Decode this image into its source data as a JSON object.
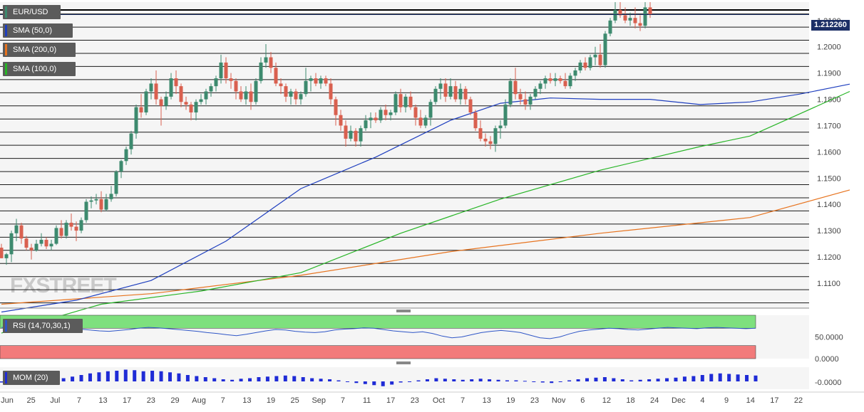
{
  "symbol": "EUR/USD",
  "last_price": "1.212260",
  "watermark": "FXSTREET",
  "colors": {
    "up": "#3d8a6e",
    "down": "#d9604f",
    "sma50": "#1f3fbf",
    "sma200": "#e7731e",
    "sma100": "#27b526",
    "rsi_line": "#2f56c7",
    "rsi_upper_zone": "#7ee07e",
    "rsi_lower_zone": "#f27b7b",
    "mom_bar": "#1f2bd6"
  },
  "indicators": [
    {
      "label": "SMA (50,0)",
      "color": "#1f3fbf"
    },
    {
      "label": "SMA (200,0)",
      "color": "#e7731e"
    },
    {
      "label": "SMA (100,0)",
      "color": "#27b526"
    }
  ],
  "rsi_label": "RSI (14,70,30,1)",
  "mom_label": "MOM (20)",
  "chart_data": {
    "type": "candlestick",
    "price_axis": {
      "ticks": [
        "1.2100",
        "1.2000",
        "1.1900",
        "1.1800",
        "1.1700",
        "1.1600",
        "1.1500",
        "1.1400",
        "1.1300",
        "1.1200",
        "1.1100"
      ],
      "ylim": [
        1.1005,
        1.217
      ]
    },
    "rsi_axis": {
      "ticks": [
        "50.0000",
        "0.0000"
      ],
      "ylim": [
        0,
        100
      ],
      "upper": 70,
      "lower": 30
    },
    "mom_axis": {
      "ticks": [
        "-0.0000"
      ]
    },
    "x_tick_labels": [
      "Jun",
      "25",
      "Jul",
      "7",
      "13",
      "17",
      "23",
      "29",
      "Aug",
      "7",
      "13",
      "19",
      "25",
      "Sep",
      "7",
      "11",
      "17",
      "23",
      "Oct",
      "7",
      "13",
      "19",
      "23",
      "Nov",
      "6",
      "12",
      "18",
      "24",
      "Dec",
      "4",
      "9",
      "14",
      "17",
      "22"
    ],
    "candles": [
      [
        1.1235,
        1.125,
        1.1195,
        1.1195
      ],
      [
        1.1195,
        1.1215,
        1.117,
        1.121
      ],
      [
        1.121,
        1.13,
        1.118,
        1.129
      ],
      [
        1.129,
        1.1345,
        1.126,
        1.132
      ],
      [
        1.132,
        1.133,
        1.125,
        1.127
      ],
      [
        1.127,
        1.128,
        1.1225,
        1.1235
      ],
      [
        1.1235,
        1.125,
        1.119,
        1.1225
      ],
      [
        1.1225,
        1.1265,
        1.122,
        1.125
      ],
      [
        1.125,
        1.129,
        1.124,
        1.1265
      ],
      [
        1.1265,
        1.1275,
        1.123,
        1.124
      ],
      [
        1.124,
        1.1265,
        1.1225,
        1.125
      ],
      [
        1.125,
        1.132,
        1.1245,
        1.131
      ],
      [
        1.131,
        1.134,
        1.127,
        1.128
      ],
      [
        1.128,
        1.134,
        1.127,
        1.133
      ],
      [
        1.133,
        1.1365,
        1.13,
        1.1315
      ],
      [
        1.1315,
        1.1335,
        1.126,
        1.13
      ],
      [
        1.13,
        1.135,
        1.129,
        1.134
      ],
      [
        1.134,
        1.142,
        1.133,
        1.141
      ],
      [
        1.141,
        1.143,
        1.1385,
        1.1415
      ],
      [
        1.1415,
        1.144,
        1.14,
        1.142
      ],
      [
        1.142,
        1.145,
        1.137,
        1.138
      ],
      [
        1.138,
        1.144,
        1.1375,
        1.142
      ],
      [
        1.142,
        1.147,
        1.141,
        1.144
      ],
      [
        1.144,
        1.153,
        1.143,
        1.1525
      ],
      [
        1.1525,
        1.157,
        1.15,
        1.1565
      ],
      [
        1.1565,
        1.162,
        1.155,
        1.161
      ],
      [
        1.161,
        1.168,
        1.159,
        1.167
      ],
      [
        1.167,
        1.178,
        1.165,
        1.177
      ],
      [
        1.177,
        1.182,
        1.173,
        1.175
      ],
      [
        1.175,
        1.184,
        1.174,
        1.183
      ],
      [
        1.183,
        1.188,
        1.18,
        1.186
      ],
      [
        1.186,
        1.191,
        1.178,
        1.18
      ],
      [
        1.18,
        1.181,
        1.17,
        1.1775
      ],
      [
        1.1775,
        1.183,
        1.176,
        1.181
      ],
      [
        1.181,
        1.19,
        1.18,
        1.188
      ],
      [
        1.188,
        1.191,
        1.182,
        1.185
      ],
      [
        1.185,
        1.186,
        1.177,
        1.179
      ],
      [
        1.179,
        1.181,
        1.176,
        1.178
      ],
      [
        1.178,
        1.179,
        1.172,
        1.175
      ],
      [
        1.175,
        1.18,
        1.172,
        1.179
      ],
      [
        1.179,
        1.182,
        1.178,
        1.18
      ],
      [
        1.18,
        1.184,
        1.178,
        1.183
      ],
      [
        1.183,
        1.186,
        1.181,
        1.185
      ],
      [
        1.185,
        1.189,
        1.183,
        1.188
      ],
      [
        1.188,
        1.197,
        1.186,
        1.194
      ],
      [
        1.194,
        1.196,
        1.186,
        1.188
      ],
      [
        1.188,
        1.19,
        1.184,
        1.187
      ],
      [
        1.187,
        1.188,
        1.18,
        1.183
      ],
      [
        1.183,
        1.185,
        1.179,
        1.18
      ],
      [
        1.18,
        1.185,
        1.178,
        1.183
      ],
      [
        1.183,
        1.186,
        1.176,
        1.179
      ],
      [
        1.179,
        1.188,
        1.178,
        1.187
      ],
      [
        1.187,
        1.196,
        1.186,
        1.194
      ],
      [
        1.194,
        1.201,
        1.192,
        1.196
      ],
      [
        1.196,
        1.198,
        1.19,
        1.192
      ],
      [
        1.192,
        1.194,
        1.185,
        1.186
      ],
      [
        1.186,
        1.188,
        1.182,
        1.185
      ],
      [
        1.185,
        1.186,
        1.179,
        1.181
      ],
      [
        1.181,
        1.184,
        1.178,
        1.183
      ],
      [
        1.183,
        1.184,
        1.178,
        1.18
      ],
      [
        1.18,
        1.183,
        1.178,
        1.182
      ],
      [
        1.182,
        1.192,
        1.181,
        1.187
      ],
      [
        1.187,
        1.189,
        1.183,
        1.188
      ],
      [
        1.188,
        1.19,
        1.185,
        1.186
      ],
      [
        1.186,
        1.189,
        1.184,
        1.188
      ],
      [
        1.188,
        1.189,
        1.185,
        1.186
      ],
      [
        1.186,
        1.188,
        1.178,
        1.18
      ],
      [
        1.18,
        1.181,
        1.17,
        1.174
      ],
      [
        1.174,
        1.176,
        1.168,
        1.17
      ],
      [
        1.17,
        1.172,
        1.162,
        1.165
      ],
      [
        1.165,
        1.17,
        1.164,
        1.168
      ],
      [
        1.168,
        1.169,
        1.162,
        1.164
      ],
      [
        1.164,
        1.17,
        1.162,
        1.169
      ],
      [
        1.169,
        1.174,
        1.168,
        1.172
      ],
      [
        1.172,
        1.175,
        1.169,
        1.173
      ],
      [
        1.173,
        1.175,
        1.171,
        1.172
      ],
      [
        1.172,
        1.177,
        1.171,
        1.176
      ],
      [
        1.176,
        1.178,
        1.172,
        1.174
      ],
      [
        1.174,
        1.176,
        1.172,
        1.175
      ],
      [
        1.175,
        1.183,
        1.174,
        1.182
      ],
      [
        1.182,
        1.184,
        1.175,
        1.177
      ],
      [
        1.177,
        1.182,
        1.175,
        1.181
      ],
      [
        1.181,
        1.183,
        1.176,
        1.177
      ],
      [
        1.177,
        1.178,
        1.17,
        1.173
      ],
      [
        1.173,
        1.176,
        1.169,
        1.17
      ],
      [
        1.17,
        1.174,
        1.169,
        1.173
      ],
      [
        1.173,
        1.18,
        1.17,
        1.179
      ],
      [
        1.179,
        1.185,
        1.178,
        1.184
      ],
      [
        1.184,
        1.188,
        1.18,
        1.186
      ],
      [
        1.186,
        1.188,
        1.179,
        1.181
      ],
      [
        1.181,
        1.188,
        1.18,
        1.185
      ],
      [
        1.185,
        1.187,
        1.179,
        1.18
      ],
      [
        1.18,
        1.186,
        1.178,
        1.184
      ],
      [
        1.184,
        1.185,
        1.178,
        1.18
      ],
      [
        1.18,
        1.181,
        1.174,
        1.175
      ],
      [
        1.175,
        1.176,
        1.168,
        1.169
      ],
      [
        1.169,
        1.172,
        1.164,
        1.165
      ],
      [
        1.165,
        1.167,
        1.162,
        1.164
      ],
      [
        1.164,
        1.166,
        1.161,
        1.163
      ],
      [
        1.163,
        1.17,
        1.16,
        1.169
      ],
      [
        1.169,
        1.172,
        1.165,
        1.17
      ],
      [
        1.17,
        1.18,
        1.169,
        1.178
      ],
      [
        1.178,
        1.188,
        1.177,
        1.187
      ],
      [
        1.187,
        1.192,
        1.18,
        1.182
      ],
      [
        1.182,
        1.184,
        1.178,
        1.18
      ],
      [
        1.18,
        1.183,
        1.176,
        1.178
      ],
      [
        1.178,
        1.182,
        1.176,
        1.181
      ],
      [
        1.181,
        1.185,
        1.18,
        1.184
      ],
      [
        1.184,
        1.187,
        1.182,
        1.186
      ],
      [
        1.186,
        1.189,
        1.184,
        1.188
      ],
      [
        1.188,
        1.19,
        1.186,
        1.187
      ],
      [
        1.187,
        1.19,
        1.185,
        1.188
      ],
      [
        1.188,
        1.189,
        1.186,
        1.187
      ],
      [
        1.187,
        1.19,
        1.184,
        1.185
      ],
      [
        1.185,
        1.19,
        1.184,
        1.189
      ],
      [
        1.189,
        1.192,
        1.187,
        1.191
      ],
      [
        1.191,
        1.195,
        1.19,
        1.194
      ],
      [
        1.194,
        1.196,
        1.191,
        1.192
      ],
      [
        1.192,
        1.197,
        1.191,
        1.196
      ],
      [
        1.196,
        1.2,
        1.193,
        1.197
      ],
      [
        1.197,
        1.201,
        1.192,
        1.193
      ],
      [
        1.193,
        1.206,
        1.192,
        1.205
      ],
      [
        1.205,
        1.211,
        1.204,
        1.21
      ],
      [
        1.21,
        1.217,
        1.209,
        1.214
      ],
      [
        1.214,
        1.217,
        1.211,
        1.212
      ],
      [
        1.212,
        1.215,
        1.209,
        1.21
      ],
      [
        1.21,
        1.213,
        1.208,
        1.211
      ],
      [
        1.211,
        1.215,
        1.207,
        1.209
      ],
      [
        1.209,
        1.212,
        1.206,
        1.208
      ],
      [
        1.208,
        1.217,
        1.207,
        1.215
      ],
      [
        1.215,
        1.217,
        1.211,
        1.2123
      ]
    ],
    "sma50": [
      [
        0,
        1.099
      ],
      [
        15,
        1.1035
      ],
      [
        30,
        1.111
      ],
      [
        45,
        1.126
      ],
      [
        60,
        1.146
      ],
      [
        75,
        1.158
      ],
      [
        90,
        1.172
      ],
      [
        100,
        1.1785
      ],
      [
        110,
        1.1805
      ],
      [
        120,
        1.18
      ],
      [
        130,
        1.18
      ],
      [
        140,
        1.178
      ],
      [
        150,
        1.179
      ],
      [
        160,
        1.182
      ],
      [
        170,
        1.1858
      ]
    ],
    "sma100": [
      [
        0,
        1.091
      ],
      [
        20,
        1.102
      ],
      [
        40,
        1.107
      ],
      [
        60,
        1.114
      ],
      [
        80,
        1.129
      ],
      [
        100,
        1.142
      ],
      [
        120,
        1.153
      ],
      [
        140,
        1.162
      ],
      [
        150,
        1.166
      ],
      [
        160,
        1.1745
      ],
      [
        170,
        1.183
      ]
    ],
    "sma200": [
      [
        0,
        1.102
      ],
      [
        30,
        1.106
      ],
      [
        60,
        1.113
      ],
      [
        90,
        1.122
      ],
      [
        120,
        1.129
      ],
      [
        150,
        1.135
      ],
      [
        170,
        1.1455
      ]
    ],
    "rsi": [
      72,
      71,
      70,
      69,
      68,
      67,
      69,
      70,
      68,
      66,
      64,
      63,
      65,
      67,
      70,
      72,
      71,
      69,
      67,
      65,
      63,
      60,
      58,
      55,
      53,
      56,
      60,
      64,
      67,
      66,
      63,
      61,
      60,
      62,
      66,
      68,
      69,
      71,
      70,
      67,
      64,
      62,
      60,
      62,
      58,
      52,
      48,
      50,
      55,
      60,
      63,
      65,
      63,
      60,
      54,
      48,
      46,
      50,
      57,
      63,
      66,
      68,
      70,
      69,
      67,
      66,
      68,
      70,
      72,
      71,
      70,
      69,
      71,
      72,
      71,
      70,
      69,
      70
    ],
    "mom": [
      -0.001,
      -0.0005,
      0.001,
      0.0015,
      0.0005,
      0.0,
      0.002,
      0.003,
      0.0045,
      0.006,
      0.0075,
      0.0085,
      0.0095,
      0.01,
      0.011,
      0.0105,
      0.0095,
      0.01,
      0.0095,
      0.0085,
      0.0075,
      0.006,
      0.005,
      0.004,
      0.003,
      0.002,
      0.0015,
      0.0025,
      0.003,
      0.004,
      0.0045,
      0.005,
      0.0055,
      0.005,
      0.004,
      0.003,
      0.0025,
      0.002,
      0.001,
      -0.0005,
      -0.0015,
      -0.0025,
      -0.0035,
      -0.0045,
      -0.003,
      -0.001,
      0.0,
      0.001,
      0.002,
      0.003,
      0.0025,
      0.002,
      0.0015,
      0.002,
      0.0025,
      0.002,
      0.0015,
      0.001,
      0.001,
      0.0005,
      0.0,
      -0.001,
      -0.0015,
      -0.0005,
      0.001,
      0.002,
      0.003,
      0.0035,
      0.004,
      0.003,
      0.002,
      0.001,
      0.0015,
      0.002,
      0.0025,
      0.003,
      0.0035,
      0.0045,
      0.005,
      0.006,
      0.007,
      0.0075,
      0.007,
      0.0065,
      0.006,
      0.0055
    ]
  }
}
